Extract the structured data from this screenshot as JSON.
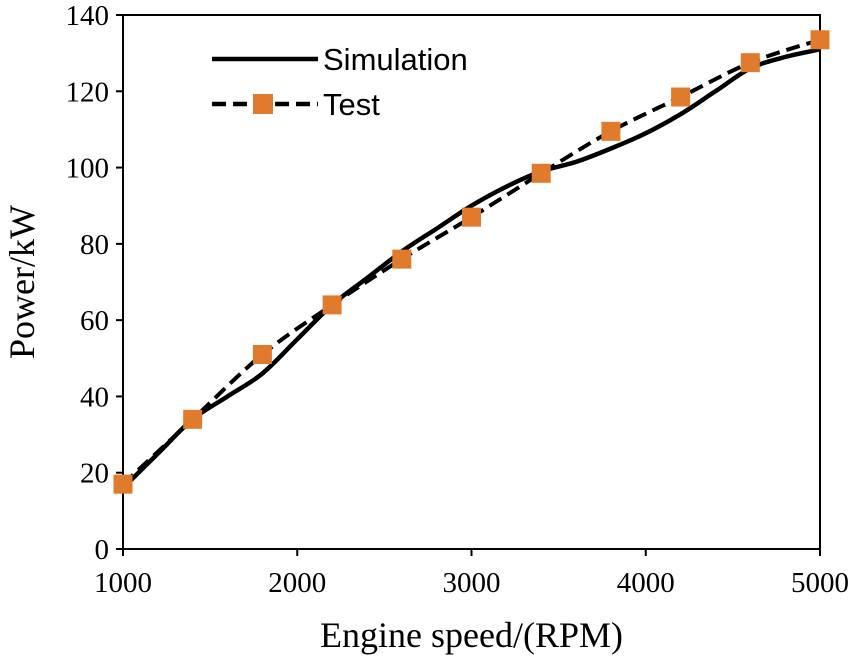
{
  "chart_data": {
    "type": "line",
    "title": "",
    "xlabel": "Engine speed/(RPM)",
    "ylabel": "Power/kW",
    "xlim": [
      1000,
      5000
    ],
    "ylim": [
      0,
      140
    ],
    "x_ticks": [
      1000,
      2000,
      3000,
      4000,
      5000
    ],
    "y_ticks": [
      0,
      20,
      40,
      60,
      80,
      100,
      120,
      140
    ],
    "legend_position": "top-left",
    "grid": false,
    "series": [
      {
        "name": "Simulation",
        "style": "solid",
        "color": "#000000",
        "x": [
          1000,
          1200,
          1400,
          1600,
          1800,
          2000,
          2200,
          2400,
          2600,
          2800,
          3000,
          3200,
          3400,
          3600,
          3800,
          4000,
          4200,
          4400,
          4600,
          4800,
          5000
        ],
        "y": [
          16,
          25,
          34,
          40,
          46,
          55,
          64,
          71,
          78,
          84,
          90,
          95,
          99,
          101.5,
          105,
          109,
          114,
          120,
          126,
          129,
          131
        ]
      },
      {
        "name": "Test",
        "style": "dashed",
        "color": "#000000",
        "marker": "square",
        "marker_color": "#E07B2D",
        "x": [
          1000,
          1400,
          1800,
          2200,
          2600,
          3000,
          3400,
          3800,
          4200,
          4600,
          5000
        ],
        "y": [
          17,
          34,
          51,
          64,
          76,
          87,
          98.5,
          109.5,
          118.5,
          127.5,
          133.5
        ]
      }
    ]
  }
}
